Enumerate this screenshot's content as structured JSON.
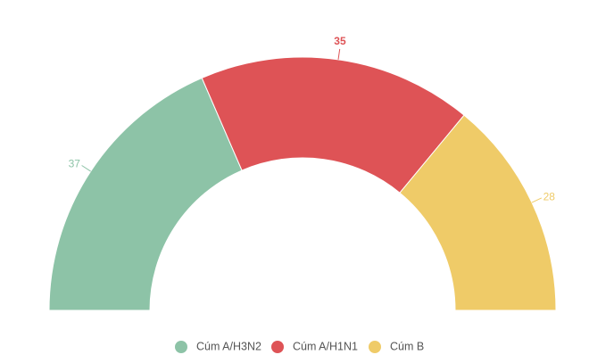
{
  "chart_data": {
    "type": "semi-donut",
    "categories": [
      "Cúm A/H3N2",
      "Cúm A/H1N1",
      "Cúm B"
    ],
    "values": [
      37,
      35,
      28
    ],
    "colors": [
      "#8dc3a7",
      "#de5356",
      "#efcb68"
    ],
    "legend": "bottom"
  }
}
